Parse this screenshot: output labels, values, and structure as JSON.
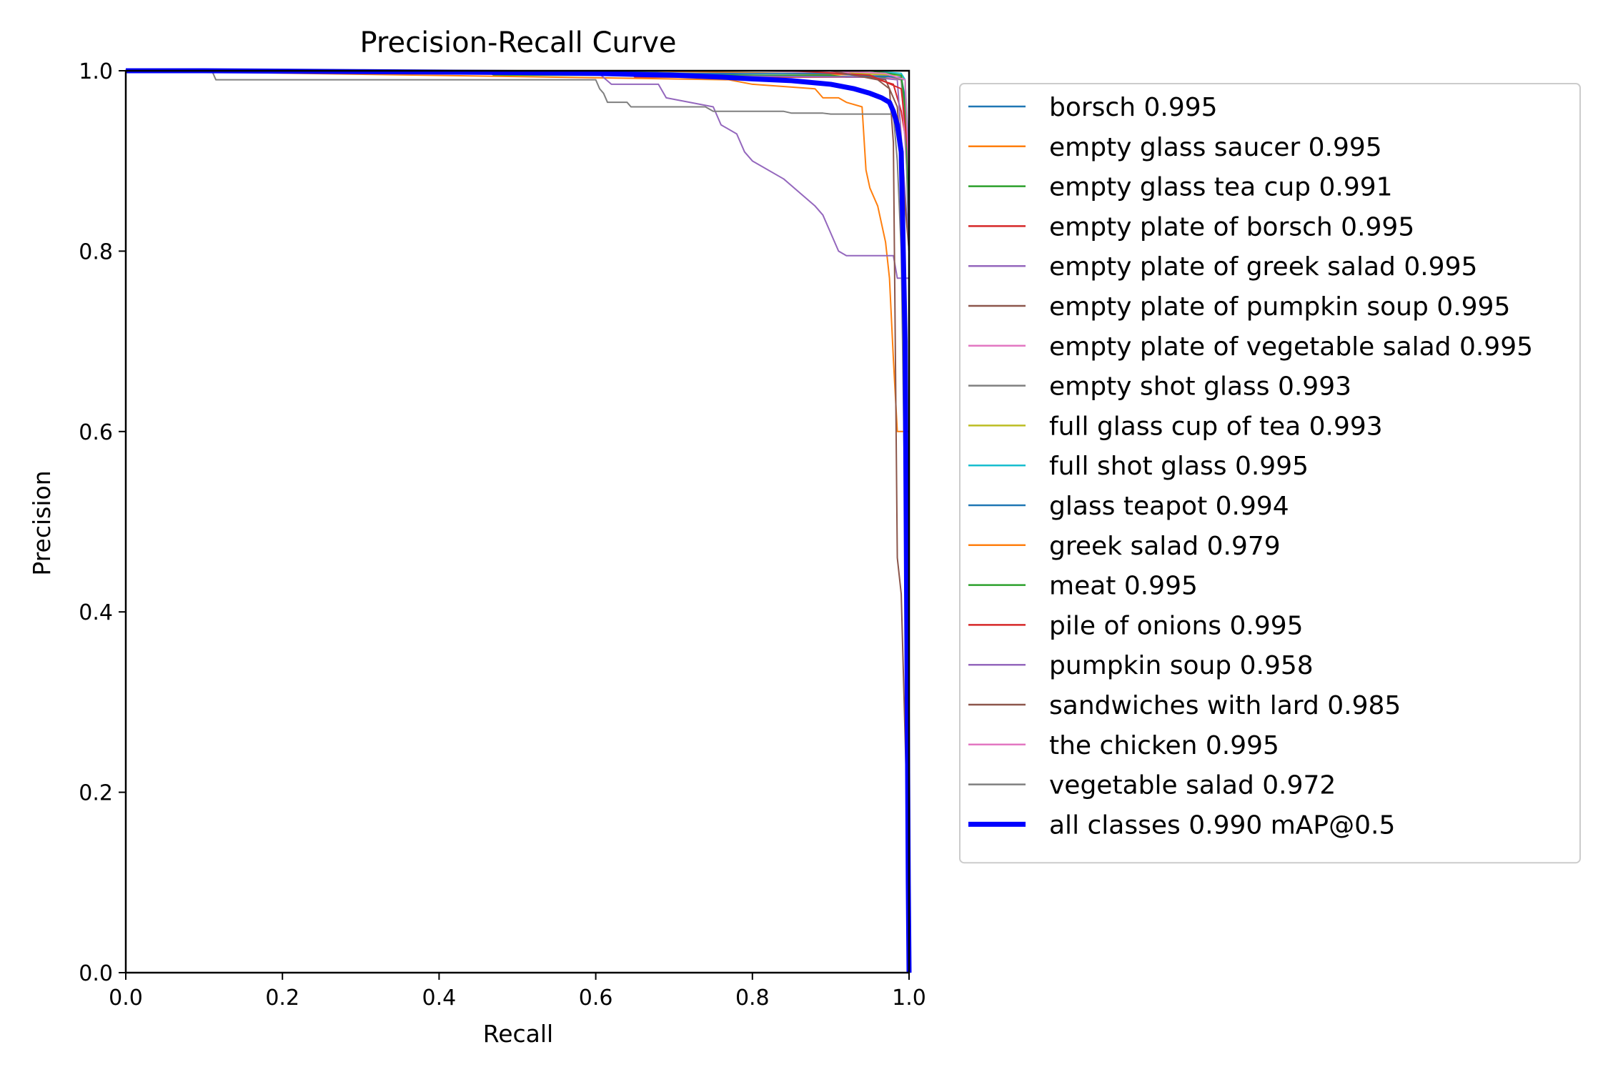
{
  "chart_data": {
    "type": "line",
    "title": "Precision-Recall Curve",
    "xlabel": "Recall",
    "ylabel": "Precision",
    "xlim": [
      0.0,
      1.0
    ],
    "ylim": [
      0.0,
      1.0
    ],
    "xticks": [
      "0.0",
      "0.2",
      "0.4",
      "0.6",
      "0.8",
      "1.0"
    ],
    "yticks": [
      "0.0",
      "0.2",
      "0.4",
      "0.6",
      "0.8",
      "1.0"
    ],
    "grid": false,
    "legend_position": "outside-right",
    "series": [
      {
        "name": "borsch 0.995",
        "color": "#1f77b4",
        "x": [
          0,
          0.6,
          0.8,
          0.97,
          0.995,
          1.0,
          1.0
        ],
        "y": [
          1.0,
          1.0,
          0.995,
          0.993,
          0.99,
          0.8,
          0.0
        ]
      },
      {
        "name": "empty glass saucer 0.995",
        "color": "#ff7f0e",
        "x": [
          0,
          0.65,
          0.85,
          0.95,
          0.99,
          1.0,
          1.0
        ],
        "y": [
          1.0,
          1.0,
          0.997,
          0.995,
          0.99,
          0.9,
          0.0
        ]
      },
      {
        "name": "empty glass tea cup 0.991",
        "color": "#2ca02c",
        "x": [
          0,
          0.46,
          0.47,
          0.9,
          0.92,
          0.99,
          0.995,
          1.0,
          1.0
        ],
        "y": [
          1.0,
          1.0,
          0.995,
          0.995,
          0.993,
          0.993,
          0.96,
          0.9,
          0.0
        ]
      },
      {
        "name": "empty plate of borsch 0.995",
        "color": "#d62728",
        "x": [
          0,
          0.64,
          0.65,
          0.95,
          0.98,
          0.99,
          1.0,
          1.0
        ],
        "y": [
          1.0,
          1.0,
          0.993,
          0.993,
          0.985,
          0.955,
          0.9,
          0.0
        ]
      },
      {
        "name": "empty plate of greek salad 0.995",
        "color": "#9467bd",
        "x": [
          0,
          0.62,
          0.63,
          0.95,
          0.985,
          1.0,
          1.0
        ],
        "y": [
          1.0,
          1.0,
          0.995,
          0.993,
          0.99,
          0.8,
          0.0
        ]
      },
      {
        "name": "empty plate of pumpkin soup 0.995",
        "color": "#8c564b",
        "x": [
          0,
          0.9,
          0.97,
          0.985,
          0.99,
          1.0,
          1.0
        ],
        "y": [
          1.0,
          1.0,
          0.99,
          0.96,
          0.9,
          0.8,
          0.0
        ]
      },
      {
        "name": "empty plate of vegetable salad 0.995",
        "color": "#e377c2",
        "x": [
          0,
          0.8,
          0.95,
          0.99,
          1.0,
          1.0
        ],
        "y": [
          1.0,
          1.0,
          0.997,
          0.99,
          0.85,
          0.0
        ]
      },
      {
        "name": "empty shot glass 0.993",
        "color": "#7f7f7f",
        "x": [
          0,
          0.92,
          0.97,
          0.99,
          0.995,
          1.0,
          1.0
        ],
        "y": [
          1.0,
          1.0,
          0.995,
          0.99,
          0.95,
          0.8,
          0.0
        ]
      },
      {
        "name": "full glass cup of tea 0.993",
        "color": "#bcbd22",
        "x": [
          0,
          0.92,
          0.93,
          0.99,
          0.995,
          1.0,
          1.0
        ],
        "y": [
          1.0,
          1.0,
          0.997,
          0.995,
          0.99,
          0.85,
          0.0
        ]
      },
      {
        "name": "full shot glass 0.995",
        "color": "#17becf",
        "x": [
          0,
          0.95,
          0.99,
          0.995,
          1.0,
          1.0
        ],
        "y": [
          1.0,
          1.0,
          0.997,
          0.99,
          0.9,
          0.0
        ]
      },
      {
        "name": "glass teapot 0.994",
        "color": "#1f77b4",
        "x": [
          0,
          0.37,
          0.375,
          0.91,
          0.93,
          0.99,
          0.995,
          1.0,
          1.0
        ],
        "y": [
          1.0,
          1.0,
          0.997,
          0.997,
          0.995,
          0.993,
          0.97,
          0.9,
          0.0
        ]
      },
      {
        "name": "greek salad 0.979",
        "color": "#ff7f0e",
        "x": [
          0,
          0.77,
          0.8,
          0.88,
          0.89,
          0.91,
          0.92,
          0.94,
          0.945,
          0.95,
          0.955,
          0.96,
          0.965,
          0.97,
          0.975,
          0.98,
          0.985,
          0.99,
          1.0,
          1.0
        ],
        "y": [
          1.0,
          0.99,
          0.985,
          0.98,
          0.97,
          0.97,
          0.965,
          0.96,
          0.89,
          0.87,
          0.86,
          0.85,
          0.83,
          0.81,
          0.77,
          0.68,
          0.6,
          0.6,
          0.6,
          0.0
        ]
      },
      {
        "name": "meat 0.995",
        "color": "#2ca02c",
        "x": [
          0,
          0.95,
          0.99,
          0.995,
          1.0,
          1.0
        ],
        "y": [
          1.0,
          1.0,
          0.995,
          0.96,
          0.85,
          0.0
        ]
      },
      {
        "name": "pile of onions 0.995",
        "color": "#d62728",
        "x": [
          0,
          0.85,
          0.95,
          0.99,
          1.0,
          1.0
        ],
        "y": [
          1.0,
          1.0,
          0.995,
          0.98,
          0.9,
          0.0
        ]
      },
      {
        "name": "pumpkin soup 0.958",
        "color": "#9467bd",
        "x": [
          0,
          0.6,
          0.62,
          0.68,
          0.69,
          0.75,
          0.76,
          0.78,
          0.79,
          0.8,
          0.84,
          0.88,
          0.89,
          0.9,
          0.91,
          0.92,
          0.98,
          0.985,
          0.99,
          1.0,
          1.0
        ],
        "y": [
          1.0,
          1.0,
          0.985,
          0.985,
          0.97,
          0.96,
          0.94,
          0.93,
          0.91,
          0.9,
          0.88,
          0.85,
          0.84,
          0.82,
          0.8,
          0.795,
          0.795,
          0.77,
          0.77,
          0.77,
          0.0
        ]
      },
      {
        "name": "sandwiches with lard 0.985",
        "color": "#8c564b",
        "x": [
          0,
          0.9,
          0.96,
          0.975,
          0.98,
          0.985,
          0.99,
          1.0,
          1.0
        ],
        "y": [
          1.0,
          1.0,
          0.99,
          0.98,
          0.92,
          0.46,
          0.42,
          0.1,
          0.0
        ]
      },
      {
        "name": "the chicken 0.995",
        "color": "#e377c2",
        "x": [
          0,
          0.9,
          0.97,
          0.995,
          1.0,
          1.0
        ],
        "y": [
          1.0,
          1.0,
          0.997,
          0.99,
          0.88,
          0.0
        ]
      },
      {
        "name": "vegetable salad 0.972",
        "color": "#7f7f7f",
        "x": [
          0,
          0.11,
          0.115,
          0.6,
          0.605,
          0.61,
          0.615,
          0.64,
          0.645,
          0.74,
          0.75,
          0.84,
          0.85,
          0.89,
          0.9,
          0.98,
          0.985,
          0.99,
          1.0,
          1.0
        ],
        "y": [
          1.0,
          1.0,
          0.99,
          0.99,
          0.98,
          0.975,
          0.965,
          0.965,
          0.96,
          0.96,
          0.955,
          0.955,
          0.953,
          0.953,
          0.952,
          0.952,
          0.9,
          0.8,
          0.2,
          0.0
        ]
      },
      {
        "name": "all classes 0.990 mAP@0.5",
        "color": "#0000ff",
        "bold": true,
        "x": [
          0,
          0.1,
          0.3,
          0.5,
          0.6,
          0.7,
          0.76,
          0.8,
          0.85,
          0.9,
          0.93,
          0.95,
          0.965,
          0.975,
          0.98,
          0.985,
          0.99,
          0.995,
          0.997,
          0.999,
          1.0
        ],
        "y": [
          1.0,
          1.0,
          0.999,
          0.998,
          0.997,
          0.995,
          0.993,
          0.991,
          0.989,
          0.985,
          0.98,
          0.975,
          0.97,
          0.965,
          0.955,
          0.94,
          0.91,
          0.7,
          0.4,
          0.1,
          0.0
        ]
      }
    ]
  }
}
